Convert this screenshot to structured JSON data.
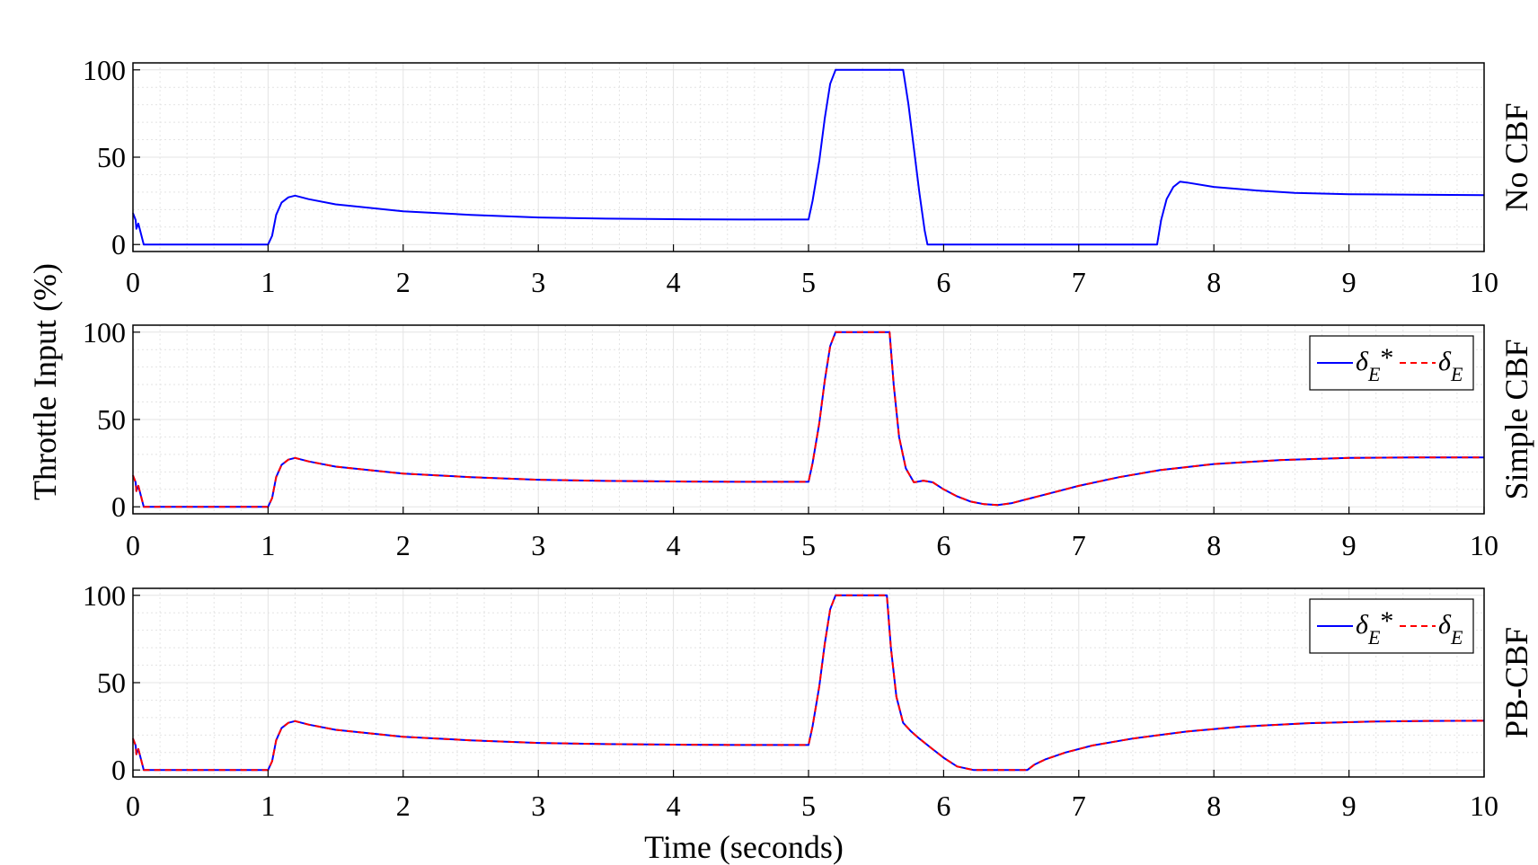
{
  "figure": {
    "ylabel": "Throttle Input (%)",
    "xlabel": "Time (seconds)"
  },
  "chart_data": [
    {
      "type": "line",
      "title": "No CBF",
      "xlim": [
        0,
        10
      ],
      "ylim": [
        -4,
        104
      ],
      "xticks": [
        "0",
        "1",
        "2",
        "3",
        "4",
        "5",
        "6",
        "7",
        "8",
        "9",
        "10"
      ],
      "yticks": [
        "0",
        "50",
        "100"
      ],
      "grid": true,
      "legend": null,
      "series": [
        {
          "color": "#0000ff",
          "dash": "solid",
          "x": [
            0,
            0.02,
            0.025,
            0.04,
            0.08,
            1.0,
            1.03,
            1.06,
            1.1,
            1.15,
            1.2,
            1.3,
            1.5,
            2.0,
            2.5,
            3.0,
            3.5,
            4.0,
            4.5,
            5.0,
            5.03,
            5.08,
            5.12,
            5.16,
            5.2,
            5.7,
            5.74,
            5.78,
            5.82,
            5.86,
            5.88,
            7.58,
            7.61,
            7.65,
            7.7,
            7.75,
            7.8,
            8.0,
            8.3,
            8.6,
            9.0,
            9.5,
            10.0
          ],
          "y": [
            18,
            14,
            9,
            12,
            0,
            0,
            5,
            17,
            24,
            27,
            28,
            26,
            23,
            19,
            17,
            15.5,
            14.8,
            14.5,
            14.3,
            14.3,
            25,
            48,
            72,
            92,
            100,
            100,
            80,
            55,
            30,
            8,
            0,
            0,
            14,
            26,
            33,
            36,
            35.5,
            33,
            31,
            29.6,
            28.8,
            28.5,
            28.3
          ]
        }
      ]
    },
    {
      "type": "line",
      "title": "Simple CBF",
      "xlim": [
        0,
        10
      ],
      "ylim": [
        -4,
        104
      ],
      "xticks": [
        "0",
        "1",
        "2",
        "3",
        "4",
        "5",
        "6",
        "7",
        "8",
        "9",
        "10"
      ],
      "yticks": [
        "0",
        "50",
        "100"
      ],
      "grid": true,
      "legend": "top-right",
      "series": [
        {
          "name": "δE*",
          "color": "#0000ff",
          "dash": "solid",
          "x": [
            0,
            0.02,
            0.025,
            0.04,
            0.08,
            1.0,
            1.03,
            1.06,
            1.1,
            1.15,
            1.2,
            1.3,
            1.5,
            2.0,
            2.5,
            3.0,
            3.5,
            4.0,
            4.5,
            5.0,
            5.03,
            5.08,
            5.12,
            5.16,
            5.2,
            5.6,
            5.63,
            5.67,
            5.72,
            5.78,
            5.85,
            5.92,
            6.0,
            6.1,
            6.2,
            6.3,
            6.4,
            6.5,
            6.6,
            6.8,
            7.0,
            7.3,
            7.6,
            8.0,
            8.5,
            9.0,
            9.5,
            10.0
          ],
          "y": [
            18,
            14,
            9,
            12,
            0,
            0,
            5,
            17,
            24,
            27,
            28,
            26,
            23,
            19,
            17,
            15.5,
            14.8,
            14.5,
            14.3,
            14.3,
            25,
            48,
            72,
            92,
            100,
            100,
            70,
            40,
            22,
            14,
            15,
            14,
            10,
            6,
            3,
            1.5,
            1,
            2,
            4,
            8,
            12,
            17,
            21,
            24.5,
            26.8,
            28,
            28.3,
            28.3
          ]
        },
        {
          "name": "δE",
          "color": "#ff0000",
          "dash": "dashed",
          "x": [
            0,
            0.02,
            0.025,
            0.04,
            0.08,
            1.0,
            1.03,
            1.06,
            1.1,
            1.15,
            1.2,
            1.3,
            1.5,
            2.0,
            2.5,
            3.0,
            3.5,
            4.0,
            4.5,
            5.0,
            5.03,
            5.08,
            5.12,
            5.16,
            5.2,
            5.6,
            5.63,
            5.67,
            5.72,
            5.78,
            5.85,
            5.92,
            6.0,
            6.1,
            6.2,
            6.3,
            6.4,
            6.5,
            6.6,
            6.8,
            7.0,
            7.3,
            7.6,
            8.0,
            8.5,
            9.0,
            9.5,
            10.0
          ],
          "y": [
            18,
            14,
            9,
            12,
            0,
            0,
            5,
            17,
            24,
            27,
            28,
            26,
            23,
            19,
            17,
            15.5,
            14.8,
            14.5,
            14.3,
            14.3,
            25,
            48,
            72,
            92,
            100,
            100,
            70,
            40,
            22,
            14,
            15,
            14,
            10,
            6,
            3,
            1.5,
            1,
            2,
            4,
            8,
            12,
            17,
            21,
            24.5,
            26.8,
            28,
            28.3,
            28.3
          ]
        }
      ]
    },
    {
      "type": "line",
      "title": "PB-CBF",
      "xlim": [
        0,
        10
      ],
      "ylim": [
        -4,
        104
      ],
      "xticks": [
        "0",
        "1",
        "2",
        "3",
        "4",
        "5",
        "6",
        "7",
        "8",
        "9",
        "10"
      ],
      "yticks": [
        "0",
        "50",
        "100"
      ],
      "grid": true,
      "legend": "top-right",
      "series": [
        {
          "name": "δE*",
          "color": "#0000ff",
          "dash": "solid",
          "x": [
            0,
            0.02,
            0.025,
            0.04,
            0.08,
            1.0,
            1.03,
            1.06,
            1.1,
            1.15,
            1.2,
            1.3,
            1.5,
            2.0,
            2.5,
            3.0,
            3.5,
            4.0,
            4.5,
            5.0,
            5.03,
            5.08,
            5.12,
            5.16,
            5.2,
            5.58,
            5.61,
            5.65,
            5.7,
            5.76,
            5.82,
            5.9,
            6.0,
            6.1,
            6.22,
            6.62,
            6.67,
            6.75,
            6.9,
            7.1,
            7.4,
            7.8,
            8.2,
            8.7,
            9.2,
            9.6,
            10.0
          ],
          "y": [
            18,
            14,
            9,
            12,
            0,
            0,
            5,
            17,
            24,
            27,
            28,
            26,
            23,
            19,
            17,
            15.5,
            14.8,
            14.5,
            14.3,
            14.3,
            25,
            48,
            72,
            92,
            100,
            100,
            70,
            42,
            27,
            22,
            18,
            13,
            7,
            2,
            0,
            0,
            3,
            6,
            10,
            14,
            18,
            22,
            24.8,
            26.8,
            27.8,
            28.1,
            28.2
          ]
        },
        {
          "name": "δE",
          "color": "#ff0000",
          "dash": "dashed",
          "x": [
            0,
            0.02,
            0.025,
            0.04,
            0.08,
            1.0,
            1.03,
            1.06,
            1.1,
            1.15,
            1.2,
            1.3,
            1.5,
            2.0,
            2.5,
            3.0,
            3.5,
            4.0,
            4.5,
            5.0,
            5.03,
            5.08,
            5.12,
            5.16,
            5.2,
            5.58,
            5.61,
            5.65,
            5.7,
            5.76,
            5.82,
            5.9,
            6.0,
            6.1,
            6.22,
            6.62,
            6.67,
            6.75,
            6.9,
            7.1,
            7.4,
            7.8,
            8.2,
            8.7,
            9.2,
            9.6,
            10.0
          ],
          "y": [
            18,
            14,
            9,
            12,
            0,
            0,
            5,
            17,
            24,
            27,
            28,
            26,
            23,
            19,
            17,
            15.5,
            14.8,
            14.5,
            14.3,
            14.3,
            25,
            48,
            72,
            92,
            100,
            100,
            70,
            42,
            27,
            22,
            18,
            13,
            7,
            2,
            0,
            0,
            3,
            6,
            10,
            14,
            18,
            22,
            24.8,
            26.8,
            27.8,
            28.1,
            28.2
          ]
        }
      ]
    }
  ]
}
